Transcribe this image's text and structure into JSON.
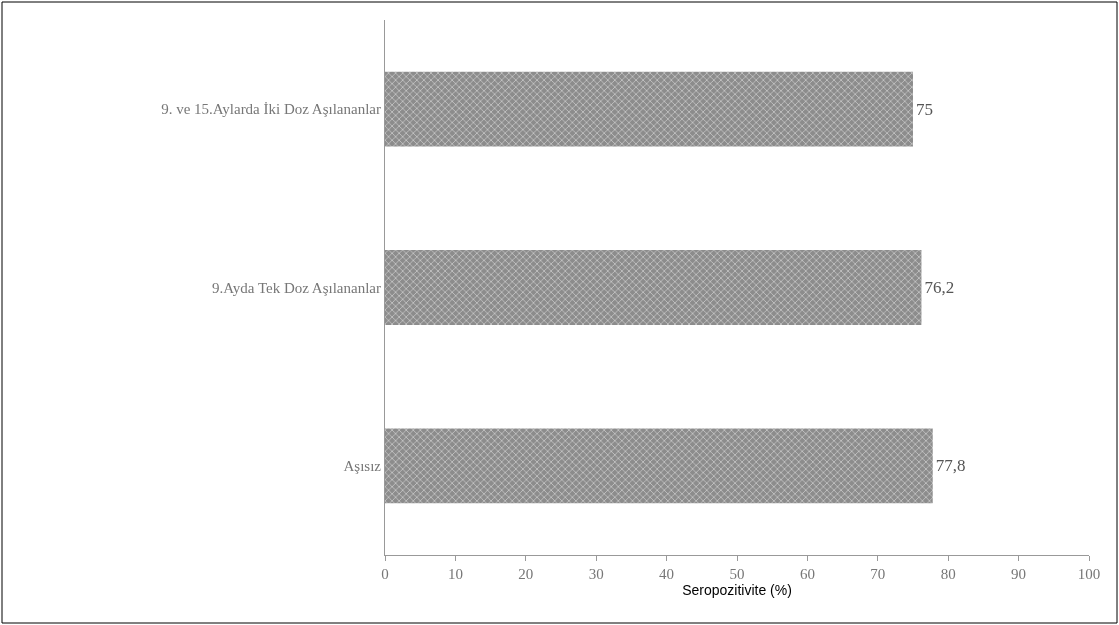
{
  "chart_data": {
    "type": "bar",
    "orientation": "horizontal",
    "xlabel": "Seropozitivite (%)",
    "categories": [
      "9. ve 15.Aylarda İki Doz Aşılananlar",
      "9.Ayda Tek Doz Aşılananlar",
      "Aşısız"
    ],
    "values": [
      75,
      76.2,
      77.8
    ],
    "value_labels": [
      "75",
      "76,2",
      "77,8"
    ],
    "color": "#8c8c8c",
    "xlim": [
      0,
      100
    ],
    "xticks": [
      0,
      10,
      20,
      30,
      40,
      50,
      60,
      70,
      80,
      90,
      100
    ]
  }
}
